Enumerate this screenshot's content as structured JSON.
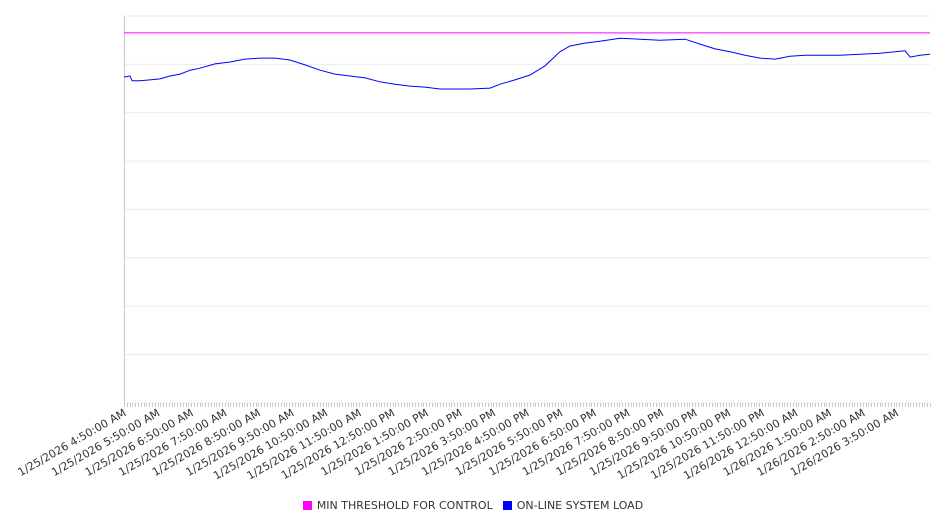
{
  "chart_data": {
    "type": "line",
    "title": "",
    "xlabel": "",
    "ylabel": "",
    "grid": true,
    "legend_position": "bottom-center",
    "x_unit": "hours since 1/25/2026 4:50:00 AM",
    "xlim": [
      0,
      24
    ],
    "ylim": [
      0,
      800
    ],
    "x_tick_labels": [
      "1/25/2026 4:50:00 AM",
      "1/25/2026 5:50:00 AM",
      "1/25/2026 6:50:00 AM",
      "1/25/2026 7:50:00 AM",
      "1/25/2026 8:50:00 AM",
      "1/25/2026 9:50:00 AM",
      "1/25/2026 10:50:00 AM",
      "1/25/2026 11:50:00 AM",
      "1/25/2026 12:50:00 PM",
      "1/25/2026 1:50:00 PM",
      "1/25/2026 2:50:00 PM",
      "1/25/2026 3:50:00 PM",
      "1/25/2026 4:50:00 PM",
      "1/25/2026 5:50:00 PM",
      "1/25/2026 6:50:00 PM",
      "1/25/2026 7:50:00 PM",
      "1/25/2026 8:50:00 PM",
      "1/25/2026 9:50:00 PM",
      "1/25/2026 10:50:00 PM",
      "1/25/2026 11:50:00 PM",
      "1/26/2026 12:50:00 AM",
      "1/26/2026 1:50:00 AM",
      "1/26/2026 2:50:00 AM",
      "1/26/2026 3:50:00 AM"
    ],
    "series": [
      {
        "name": "MIN THRESHOLD FOR CONTROL",
        "color": "#ff00ff",
        "x": [
          0,
          24
        ],
        "values": [
          765,
          765
        ]
      },
      {
        "name": "ON-LINE SYSTEM LOAD",
        "color": "#0000ff",
        "x": [
          0,
          0.18,
          0.24,
          0.48,
          0.77,
          1.07,
          1.37,
          1.67,
          1.97,
          2.26,
          2.71,
          3.16,
          3.6,
          4.05,
          4.5,
          4.94,
          5.39,
          5.84,
          6.28,
          6.73,
          7.18,
          7.62,
          8.07,
          8.52,
          8.96,
          9.41,
          9.86,
          10.3,
          10.9,
          11.2,
          11.64,
          12.09,
          12.54,
          12.98,
          13.28,
          13.73,
          14.17,
          14.77,
          15.37,
          15.96,
          16.71,
          17.15,
          17.6,
          18.05,
          18.49,
          18.94,
          19.39,
          19.83,
          20.28,
          20.73,
          21.32,
          21.92,
          22.51,
          23.26,
          23.41,
          23.7,
          24.0
        ],
        "values": [
          674,
          676,
          666,
          666,
          668,
          670,
          676,
          680,
          688,
          692,
          701,
          705,
          711,
          713,
          713,
          709,
          699,
          688,
          680,
          676,
          672,
          664,
          659,
          655,
          653,
          649,
          649,
          649,
          651,
          659,
          668,
          678,
          697,
          726,
          738,
          744,
          748,
          754,
          752,
          750,
          752,
          742,
          732,
          726,
          719,
          713,
          711,
          717,
          719,
          719,
          719,
          721,
          723,
          728,
          715,
          719,
          721
        ]
      }
    ]
  }
}
